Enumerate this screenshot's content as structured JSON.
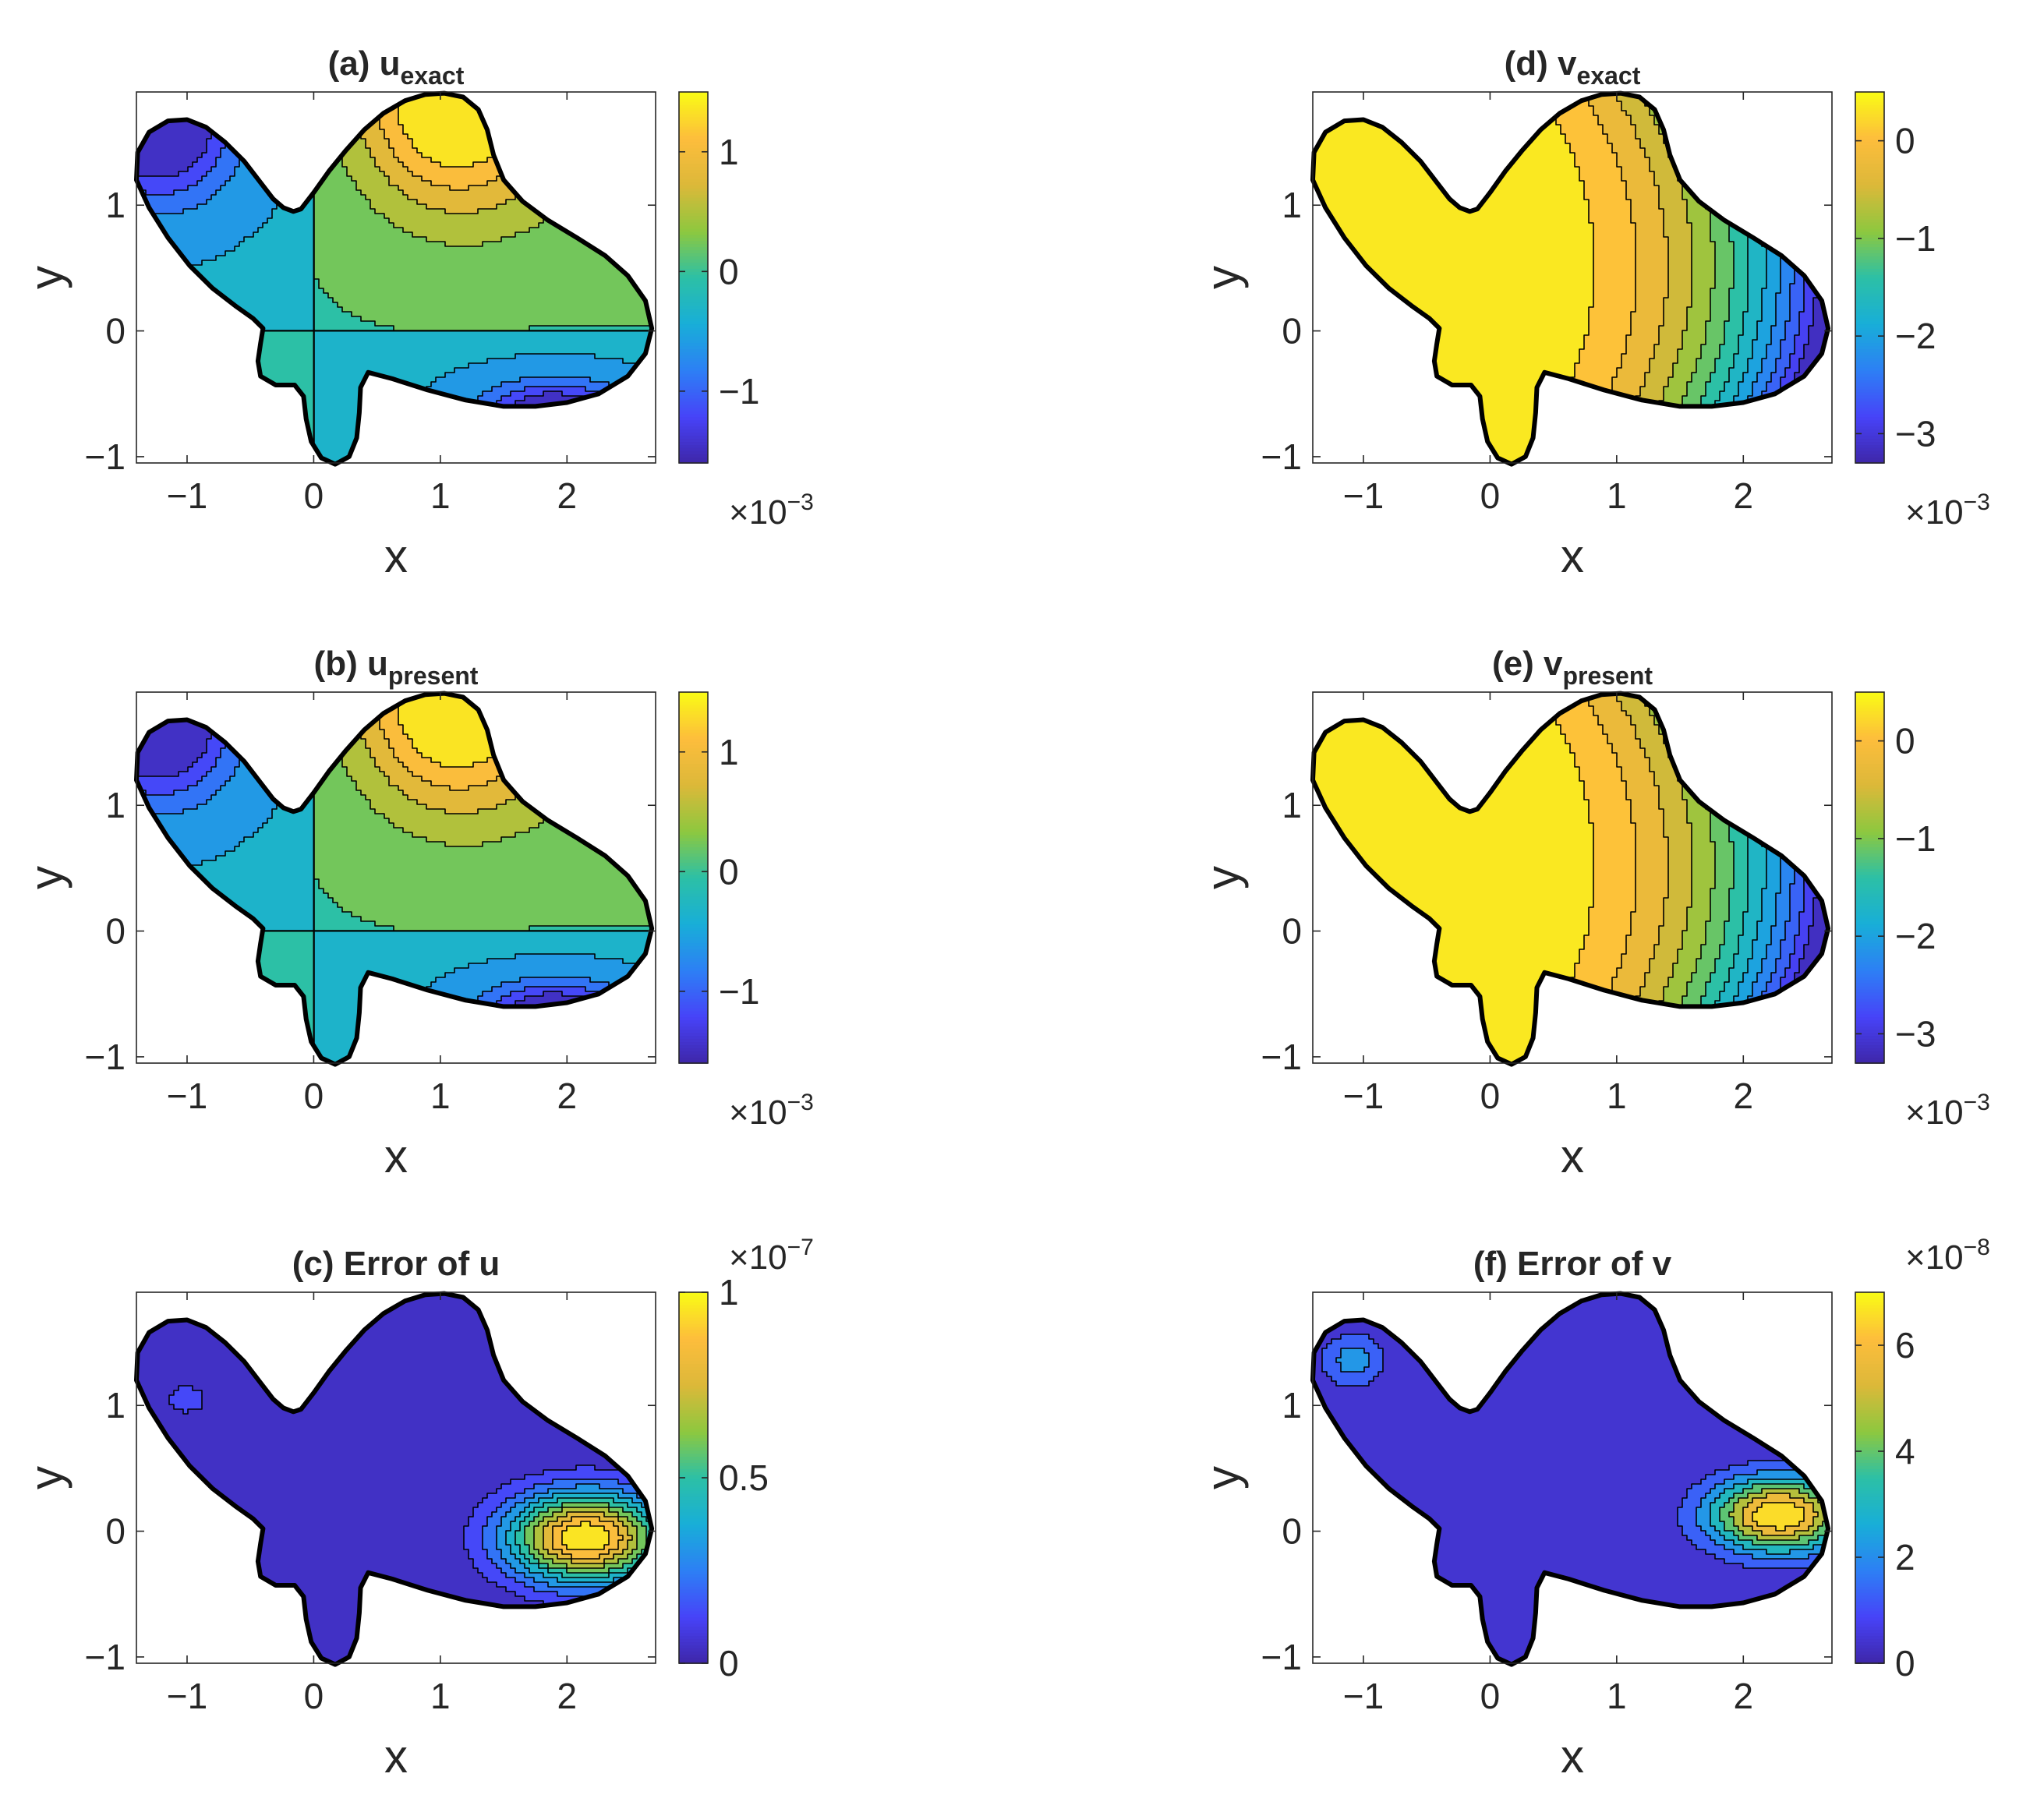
{
  "figure": {
    "colormap": "parula",
    "colormap_stops": [
      "#3e26a8",
      "#4743f8",
      "#2d7ff5",
      "#18aed8",
      "#2cc0a6",
      "#8dc83f",
      "#dcb839",
      "#fdbd3c",
      "#f9fb15"
    ],
    "contour_line_color": "#000000",
    "boundary_color": "#000000"
  },
  "chart_data": [
    {
      "type": "heatmap",
      "panel": "(a)",
      "title": "(a) u",
      "title_subscript": "exact",
      "xlabel": "x",
      "ylabel": "y",
      "xlim": [
        -1.4,
        2.7
      ],
      "ylim": [
        -1.05,
        1.9
      ],
      "xticks": [
        "−1",
        "0",
        "1",
        "2"
      ],
      "yticks": [
        "−1",
        "0",
        "1"
      ],
      "colorbar": {
        "range": [
          -1.6,
          1.5
        ],
        "ticks": [
          "1",
          "0",
          "−1"
        ],
        "multiplier": "×10",
        "exponent": "−3"
      },
      "field_model": "piecewise",
      "contour_levels": 11,
      "clim": [
        -1.6,
        1.5
      ]
    },
    {
      "type": "heatmap",
      "panel": "(b)",
      "title": "(b) u",
      "title_subscript": "present",
      "xlabel": "x",
      "ylabel": "y",
      "xlim": [
        -1.4,
        2.7
      ],
      "ylim": [
        -1.05,
        1.9
      ],
      "xticks": [
        "−1",
        "0",
        "1",
        "2"
      ],
      "yticks": [
        "−1",
        "0",
        "1"
      ],
      "colorbar": {
        "range": [
          -1.6,
          1.5
        ],
        "ticks": [
          "1",
          "0",
          "−1"
        ],
        "multiplier": "×10",
        "exponent": "−3"
      },
      "field_model": "piecewise",
      "contour_levels": 11,
      "clim": [
        -1.6,
        1.5
      ]
    },
    {
      "type": "heatmap",
      "panel": "(c)",
      "title": "(c) Error of u",
      "title_subscript": "",
      "xlabel": "x",
      "ylabel": "y",
      "xlim": [
        -1.4,
        2.7
      ],
      "ylim": [
        -1.05,
        1.9
      ],
      "xticks": [
        "−1",
        "0",
        "1",
        "2"
      ],
      "yticks": [
        "−1",
        "0",
        "1"
      ],
      "colorbar": {
        "range": [
          0,
          1.0
        ],
        "ticks": [
          "1",
          "0.5",
          "0"
        ],
        "multiplier": "×10",
        "exponent": "−7"
      },
      "field_model": "gaussian_peaks",
      "peaks": [
        {
          "x": 2.15,
          "y": -0.05,
          "amplitude": 1.0,
          "sx": 0.62,
          "sy": 0.36
        },
        {
          "x": -1.0,
          "y": 1.05,
          "amplitude": 0.1,
          "sx": 0.42,
          "sy": 0.32
        }
      ],
      "contour_levels": 11,
      "clim": [
        0,
        1.0
      ]
    },
    {
      "type": "heatmap",
      "panel": "(d)",
      "title": "(d) v",
      "title_subscript": "exact",
      "xlabel": "x",
      "ylabel": "y",
      "xlim": [
        -1.4,
        2.7
      ],
      "ylim": [
        -1.05,
        1.9
      ],
      "xticks": [
        "−1",
        "0",
        "1",
        "2"
      ],
      "yticks": [
        "−1",
        "0",
        "1"
      ],
      "colorbar": {
        "range": [
          -3.3,
          0.5
        ],
        "ticks": [
          "0",
          "−1",
          "−2",
          "−3"
        ],
        "multiplier": "×10",
        "exponent": "−3"
      },
      "field_model": "bands",
      "contour_levels": 13,
      "clim": [
        -3.3,
        0.5
      ]
    },
    {
      "type": "heatmap",
      "panel": "(e)",
      "title": "(e) v",
      "title_subscript": "present",
      "xlabel": "x",
      "ylabel": "y",
      "xlim": [
        -1.4,
        2.7
      ],
      "ylim": [
        -1.05,
        1.9
      ],
      "xticks": [
        "−1",
        "0",
        "1",
        "2"
      ],
      "yticks": [
        "−1",
        "0",
        "1"
      ],
      "colorbar": {
        "range": [
          -3.3,
          0.5
        ],
        "ticks": [
          "0",
          "−1",
          "−2",
          "−3"
        ],
        "multiplier": "×10",
        "exponent": "−3"
      },
      "field_model": "bands",
      "contour_levels": 13,
      "clim": [
        -3.3,
        0.5
      ]
    },
    {
      "type": "heatmap",
      "panel": "(f)",
      "title": "(f) Error of v",
      "title_subscript": "",
      "xlabel": "x",
      "ylabel": "y",
      "xlim": [
        -1.4,
        2.7
      ],
      "ylim": [
        -1.05,
        1.9
      ],
      "xticks": [
        "−1",
        "0",
        "1",
        "2"
      ],
      "yticks": [
        "−1",
        "0",
        "1"
      ],
      "colorbar": {
        "range": [
          0,
          7.0
        ],
        "ticks": [
          "6",
          "4",
          "2",
          "0"
        ],
        "multiplier": "×10",
        "exponent": "−8"
      },
      "field_model": "gaussian_peaks",
      "peaks": [
        {
          "x": 2.28,
          "y": 0.13,
          "amplitude": 7.0,
          "sx": 0.55,
          "sy": 0.3
        },
        {
          "x": -1.08,
          "y": 1.36,
          "amplitude": 2.2,
          "sx": 0.26,
          "sy": 0.22
        }
      ],
      "contour_levels": 8,
      "clim": [
        0,
        7.0
      ]
    }
  ]
}
